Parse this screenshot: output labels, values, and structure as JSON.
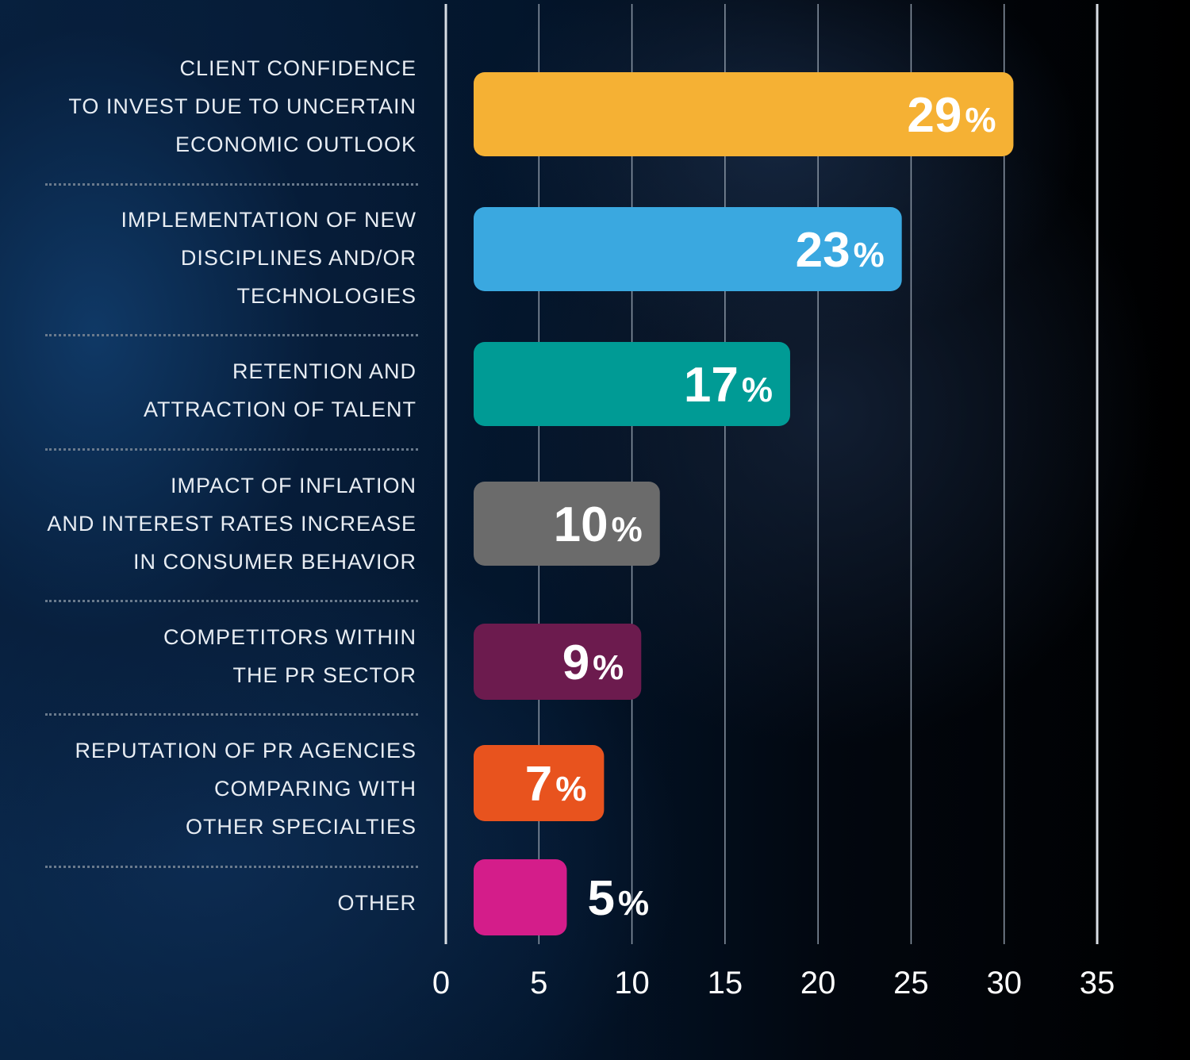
{
  "chart_data": {
    "type": "bar",
    "orientation": "horizontal",
    "categories": [
      "CLIENT CONFIDENCE\nTO INVEST DUE TO UNCERTAIN\nECONOMIC OUTLOOK",
      "IMPLEMENTATION OF NEW\nDISCIPLINES AND/OR\nTECHNOLOGIES",
      "RETENTION AND\nATTRACTION OF TALENT",
      "IMPACT OF INFLATION\nAND INTEREST RATES INCREASE\nIN CONSUMER BEHAVIOR",
      "COMPETITORS WITHIN\nTHE PR SECTOR",
      "REPUTATION OF PR AGENCIES\nCOMPARING WITH\nOTHER SPECIALTIES",
      "OTHER"
    ],
    "values": [
      29,
      23,
      17,
      10,
      9,
      7,
      5
    ],
    "data_labels": [
      "29",
      "23",
      "17",
      "10",
      "9",
      "7",
      "5"
    ],
    "unit_suffix": "%",
    "colors": [
      "#f5b134",
      "#3aa8e0",
      "#009b95",
      "#6b6b6b",
      "#6c1b4e",
      "#e8531e",
      "#d41d8a"
    ],
    "xlim": [
      0,
      35
    ],
    "xticks": [
      0,
      5,
      10,
      15,
      20,
      25,
      30,
      35
    ],
    "tick_labels": [
      "0",
      "5",
      "10",
      "15",
      "20",
      "25",
      "30",
      "35"
    ],
    "grid": true,
    "legend": "none",
    "title": "",
    "xlabel": "",
    "ylabel": ""
  }
}
